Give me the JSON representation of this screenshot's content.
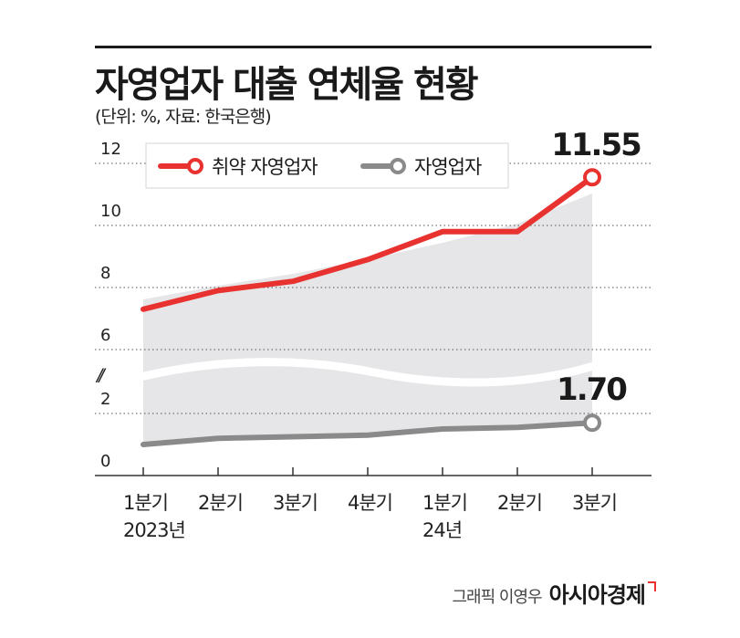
{
  "title": "자영업자 대출 연체율 현황",
  "subtitle": "(단위: %, 자료: 한국은행)",
  "credit": {
    "name": "그래픽 이영우",
    "brand": "아시아경제"
  },
  "colors": {
    "vulnerable": "#e8322f",
    "all": "#8a8a8a",
    "band": "#e6e6e9",
    "grid": "#555555",
    "axis": "#333333"
  },
  "chart_data": {
    "type": "line",
    "categories": [
      "1분기\n2023년",
      "2분기",
      "3분기",
      "4분기",
      "1분기\n24년",
      "2분기",
      "3분기"
    ],
    "y_ticks": [
      "0",
      "2",
      "6",
      "8",
      "10",
      "12"
    ],
    "axis_break": "//",
    "broken_axis": true,
    "grid": "dotted",
    "legend_position": "top-left",
    "series": [
      {
        "name": "취약 자영업자",
        "color": "#e8322f",
        "values": [
          7.3,
          7.9,
          8.2,
          8.9,
          9.8,
          9.8,
          11.55
        ],
        "end_label": "11.55"
      },
      {
        "name": "자영업자",
        "color": "#8a8a8a",
        "values": [
          1.0,
          1.2,
          1.25,
          1.3,
          1.5,
          1.55,
          1.7
        ],
        "end_label": "1.70"
      }
    ]
  }
}
